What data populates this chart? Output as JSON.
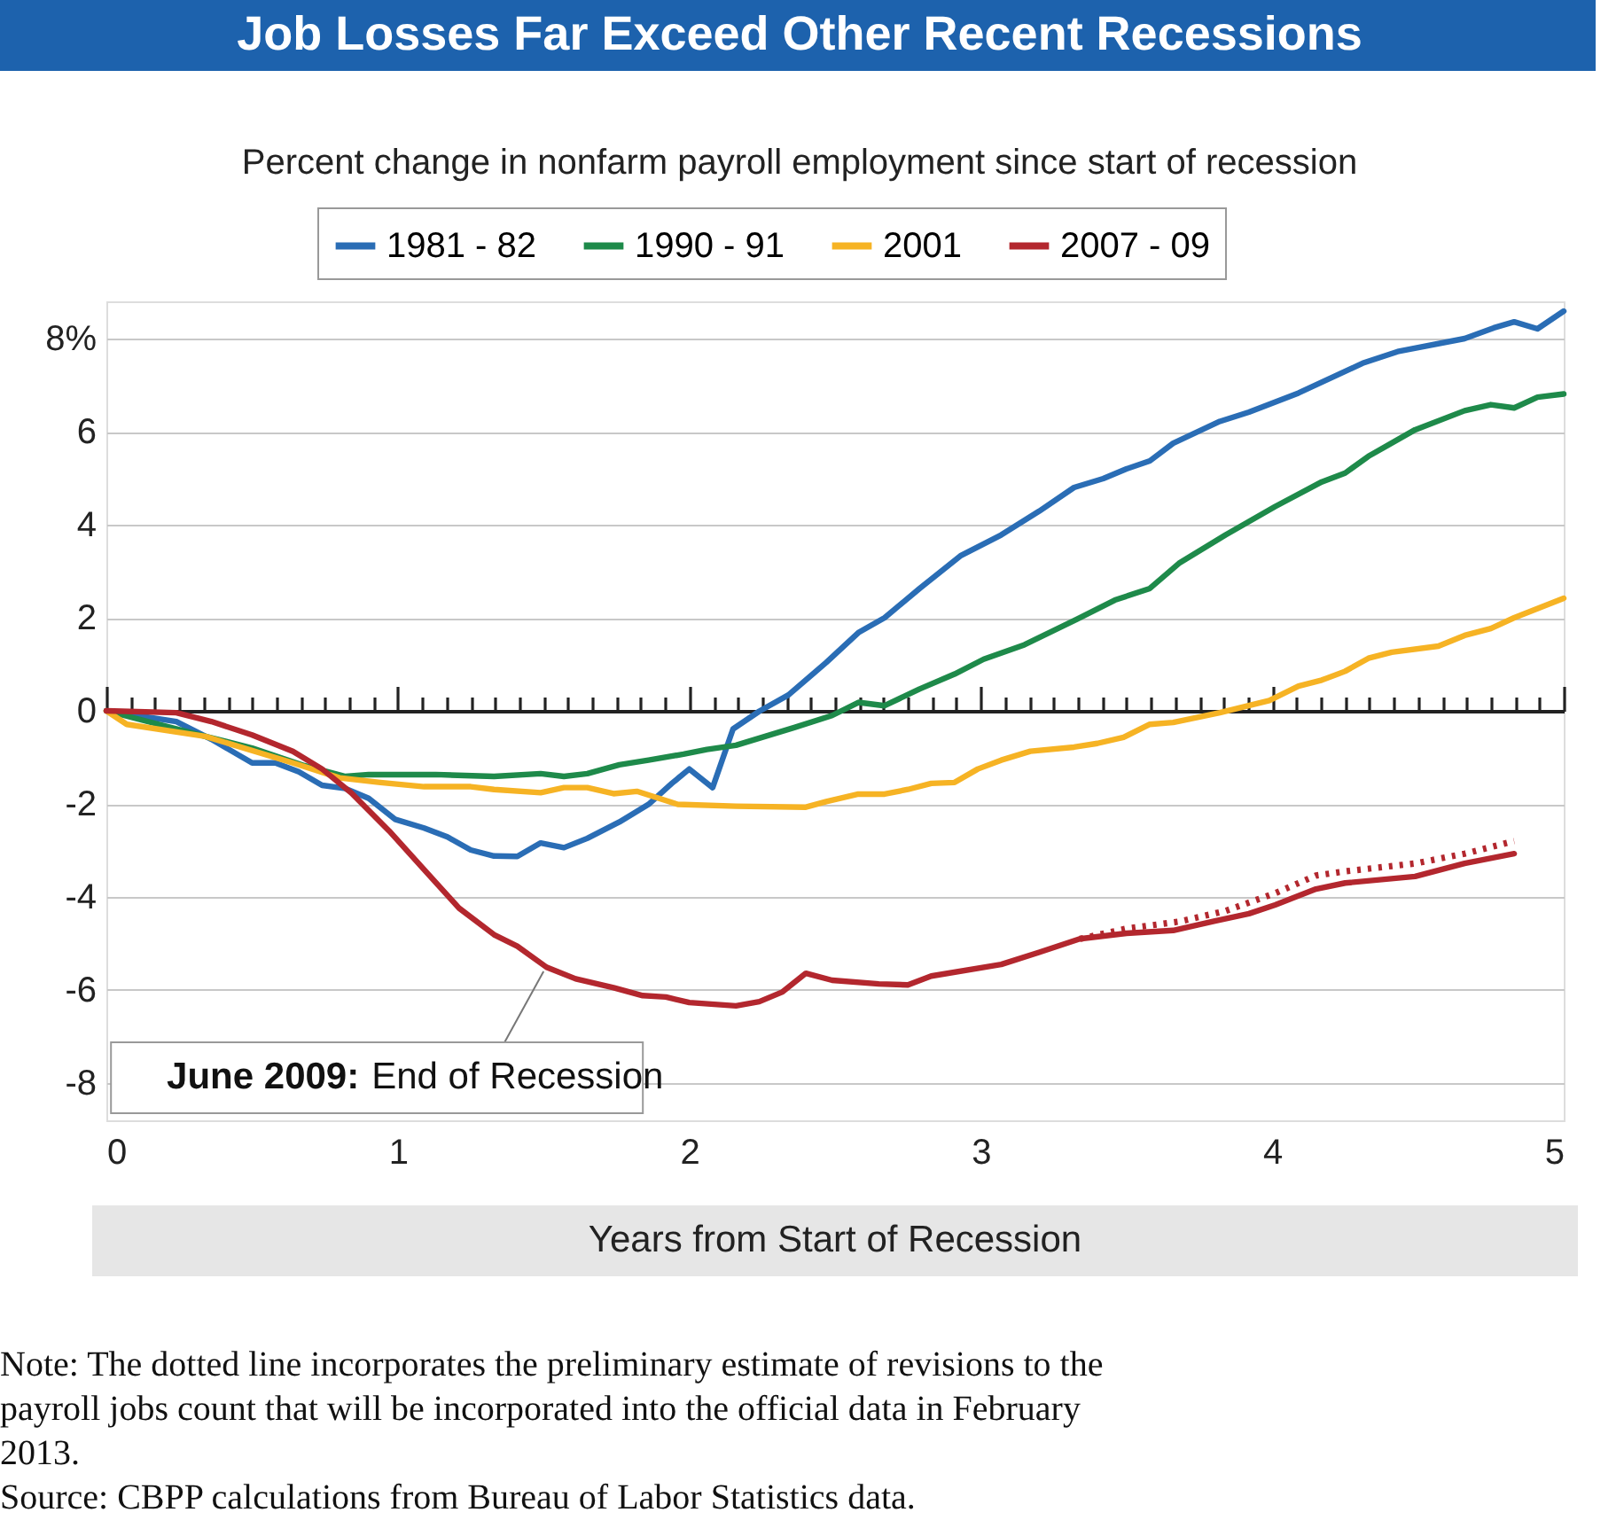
{
  "chart_data": {
    "type": "line",
    "title": "Job Losses Far Exceed Other Recent Recessions",
    "subtitle": "Percent change in nonfarm payroll employment since start of recession",
    "xlabel": "Years from Start of Recession",
    "xlim": [
      0,
      5
    ],
    "xticks": [
      0,
      1,
      2,
      3,
      4,
      5
    ],
    "ylim": [
      -8.8,
      8.8
    ],
    "yticks": [
      {
        "value": 8,
        "label": "8%"
      },
      6,
      4,
      2,
      0,
      -2,
      -4,
      -6,
      -8
    ],
    "grid": "y",
    "legend": "top",
    "marker": "none",
    "line_style": "solid",
    "series": [
      {
        "name": "1981 - 82",
        "color": "#2a6db5",
        "x": [
          0,
          0.24,
          0.36,
          0.5,
          0.58,
          0.66,
          0.74,
          0.82,
          0.9,
          0.99,
          1.09,
          1.17,
          1.25,
          1.33,
          1.41,
          1.49,
          1.57,
          1.65,
          1.76,
          1.86,
          1.94,
          2.0,
          2.08,
          2.15,
          2.24,
          2.34,
          2.47,
          2.58,
          2.67,
          2.79,
          2.93,
          3.07,
          3.2,
          3.32,
          3.42,
          3.5,
          3.58,
          3.66,
          3.82,
          3.92,
          4.09,
          4.31,
          4.43,
          4.66,
          4.76,
          4.83,
          4.91,
          5.0
        ],
        "values": [
          0,
          -0.23,
          -0.61,
          -1.12,
          -1.12,
          -1.31,
          -1.6,
          -1.67,
          -1.88,
          -2.33,
          -2.52,
          -2.71,
          -2.99,
          -3.12,
          -3.13,
          -2.84,
          -2.94,
          -2.74,
          -2.39,
          -2.01,
          -1.56,
          -1.25,
          -1.65,
          -0.39,
          -0.01,
          0.34,
          1.04,
          1.68,
          2.0,
          2.63,
          3.33,
          3.78,
          4.29,
          4.8,
          4.99,
          5.2,
          5.37,
          5.75,
          6.22,
          6.42,
          6.83,
          7.47,
          7.72,
          8.0,
          8.23,
          8.36,
          8.21,
          8.59
        ]
      },
      {
        "name": "1990 - 91",
        "color": "#1e8a4a",
        "x": [
          0,
          0.34,
          0.5,
          0.68,
          0.82,
          0.9,
          1.13,
          1.33,
          1.49,
          1.57,
          1.65,
          1.76,
          1.86,
          1.98,
          2.06,
          2.16,
          2.26,
          2.36,
          2.49,
          2.58,
          2.67,
          2.79,
          2.91,
          3.01,
          3.15,
          3.33,
          3.46,
          3.58,
          3.68,
          3.84,
          4.01,
          4.17,
          4.25,
          4.33,
          4.49,
          4.66,
          4.75,
          4.83,
          4.91,
          5.0
        ],
        "values": [
          0,
          -0.55,
          -0.8,
          -1.18,
          -1.41,
          -1.37,
          -1.37,
          -1.41,
          -1.35,
          -1.41,
          -1.35,
          -1.16,
          -1.06,
          -0.93,
          -0.83,
          -0.74,
          -0.55,
          -0.36,
          -0.1,
          0.18,
          0.11,
          0.47,
          0.79,
          1.11,
          1.42,
          1.97,
          2.38,
          2.63,
          3.17,
          3.78,
          4.39,
          4.92,
          5.11,
          5.47,
          6.04,
          6.45,
          6.58,
          6.51,
          6.74,
          6.81
        ]
      },
      {
        "name": "2001",
        "color": "#f6b324",
        "x": [
          0,
          0.07,
          0.34,
          0.64,
          0.8,
          0.94,
          1.09,
          1.25,
          1.33,
          1.49,
          1.57,
          1.65,
          1.74,
          1.82,
          1.96,
          2.16,
          2.4,
          2.47,
          2.58,
          2.67,
          2.75,
          2.83,
          2.91,
          2.99,
          3.07,
          3.17,
          3.32,
          3.4,
          3.49,
          3.58,
          3.66,
          3.82,
          3.99,
          4.09,
          4.17,
          4.25,
          4.33,
          4.41,
          4.57,
          4.66,
          4.75,
          4.83,
          5.0
        ],
        "values": [
          0,
          -0.29,
          -0.55,
          -1.12,
          -1.44,
          -1.54,
          -1.63,
          -1.63,
          -1.69,
          -1.76,
          -1.65,
          -1.65,
          -1.78,
          -1.73,
          -2.01,
          -2.05,
          -2.07,
          -1.95,
          -1.79,
          -1.79,
          -1.69,
          -1.56,
          -1.54,
          -1.25,
          -1.06,
          -0.87,
          -0.78,
          -0.7,
          -0.57,
          -0.29,
          -0.25,
          -0.04,
          0.22,
          0.53,
          0.66,
          0.85,
          1.13,
          1.26,
          1.39,
          1.62,
          1.77,
          2.0,
          2.42
        ]
      },
      {
        "name": "2007 - 09",
        "color": "#b3272e",
        "x": [
          0,
          0.24,
          0.36,
          0.5,
          0.64,
          0.74,
          0.84,
          0.97,
          1.09,
          1.21,
          1.33,
          1.41,
          1.51,
          1.61,
          1.74,
          1.84,
          1.92,
          2.0,
          2.16,
          2.24,
          2.32,
          2.4,
          2.49,
          2.65,
          2.75,
          2.83,
          3.07,
          3.2,
          3.34,
          3.5,
          3.66,
          3.8,
          3.92,
          4.01,
          4.15,
          4.25,
          4.49,
          4.66,
          4.83
        ],
        "values": [
          0,
          -0.04,
          -0.23,
          -0.52,
          -0.87,
          -1.25,
          -1.76,
          -2.58,
          -3.41,
          -4.24,
          -4.81,
          -5.06,
          -5.51,
          -5.76,
          -5.95,
          -6.12,
          -6.15,
          -6.27,
          -6.34,
          -6.25,
          -6.04,
          -5.64,
          -5.79,
          -5.87,
          -5.89,
          -5.7,
          -5.45,
          -5.19,
          -4.9,
          -4.78,
          -4.72,
          -4.52,
          -4.36,
          -4.17,
          -3.83,
          -3.7,
          -3.56,
          -3.28,
          -3.07
        ]
      },
      {
        "color": "#b3272e",
        "line_style": "dotted",
        "x": [
          3.34,
          3.5,
          3.68,
          3.84,
          4.01,
          4.15,
          4.25,
          4.49,
          4.66,
          4.83
        ],
        "values": [
          -4.9,
          -4.68,
          -4.53,
          -4.3,
          -3.92,
          -3.54,
          -3.45,
          -3.28,
          -3.07,
          -2.8
        ]
      }
    ],
    "annotations": [
      {
        "text": "June 2009: End of Recession",
        "x": 1.5,
        "y": -5.6
      },
      "Note: The dotted line incorporates the preliminary estimate of revisions to the payroll jobs count that will be incorporated into the official data in February 2013.",
      "Source: CBPP calculations from Bureau of Labor Statistics data."
    ]
  }
}
